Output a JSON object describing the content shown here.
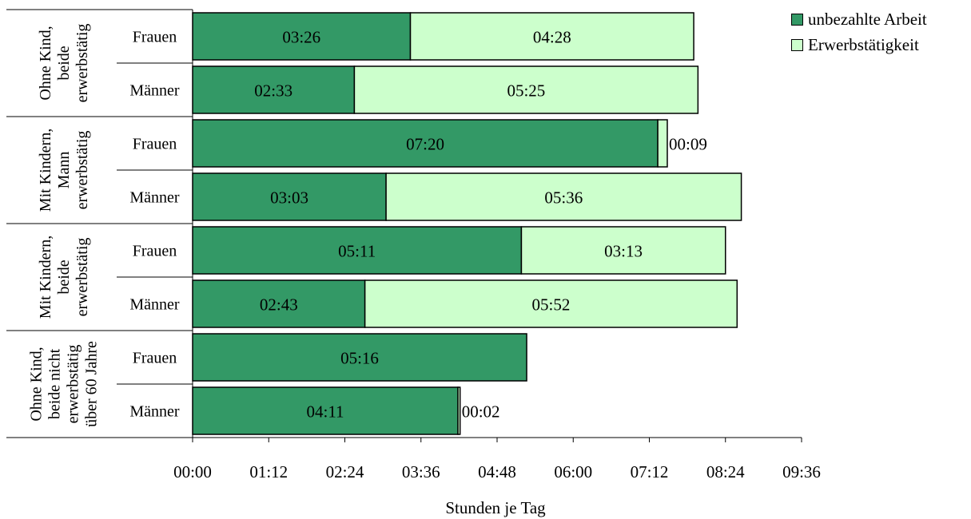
{
  "chart_data": {
    "type": "bar",
    "orientation": "horizontal",
    "stacked": true,
    "xlabel": "Stunden je Tag",
    "x_ticks": [
      "00:00",
      "01:12",
      "02:24",
      "03:36",
      "04:48",
      "06:00",
      "07:12",
      "08:24",
      "09:36"
    ],
    "xlim_minutes": [
      0,
      576
    ],
    "tick_step_minutes": 72,
    "groups": [
      {
        "label_lines": [
          "Ohne Kind,",
          "beide",
          "erwerbstätig"
        ],
        "rows": [
          "Frauen",
          "Männer"
        ]
      },
      {
        "label_lines": [
          "Mit Kindern,",
          "Mann",
          "erwerbstätig"
        ],
        "rows": [
          "Frauen",
          "Männer"
        ]
      },
      {
        "label_lines": [
          "Mit Kindern,",
          "beide",
          "erwerbstätig"
        ],
        "rows": [
          "Frauen",
          "Männer"
        ]
      },
      {
        "label_lines": [
          "Ohne Kind,",
          "beide nicht",
          "erwerbstätig",
          "über 60 Jahre"
        ],
        "rows": [
          "Frauen",
          "Männer"
        ]
      }
    ],
    "series": [
      {
        "name": "unbezahlte Arbeit",
        "color": "#339966",
        "values_minutes": [
          206,
          153,
          440,
          183,
          311,
          163,
          316,
          251
        ],
        "labels": [
          "03:26",
          "02:33",
          "07:20",
          "03:03",
          "05:11",
          "02:43",
          "05:16",
          "04:11"
        ]
      },
      {
        "name": "Erwerbstätigkeit",
        "color": "#ccffcc",
        "values_minutes": [
          268,
          325,
          9,
          336,
          193,
          352,
          0,
          2
        ],
        "labels": [
          "04:28",
          "05:25",
          "00:09",
          "05:36",
          "03:13",
          "05:52",
          "",
          "00:02"
        ]
      }
    ],
    "legend_position": "top-right",
    "grid": false
  }
}
